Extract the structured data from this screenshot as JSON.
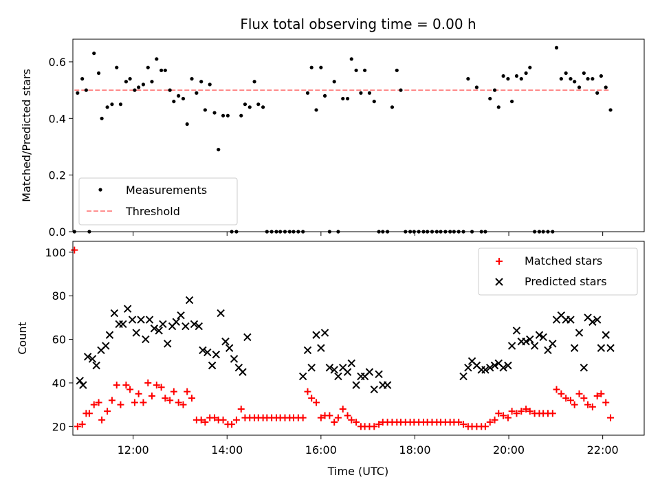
{
  "chart_data": [
    {
      "type": "scatter",
      "title": "Flux total observing time = 0.00 h",
      "xlabel": "",
      "ylabel": "Matched/Predicted stars",
      "ylim": [
        0,
        0.68
      ],
      "yticks": [
        0.0,
        0.2,
        0.4,
        0.6
      ],
      "ytick_labels": [
        "0.0",
        "0.2",
        "0.4",
        "0.6"
      ],
      "xlim": [
        "10:43",
        "22:53"
      ],
      "xticks": [
        "12:00",
        "14:00",
        "16:00",
        "18:00",
        "20:00",
        "22:00"
      ],
      "legend": {
        "position": "lower-left",
        "entries": [
          "Measurements",
          "Threshold"
        ]
      },
      "threshold": {
        "name": "Threshold",
        "value": 0.5,
        "color": "#ff8080",
        "style": "dashed"
      },
      "series": [
        {
          "name": "Measurements",
          "color": "#000000",
          "marker": "dot",
          "x": [
            "10:45",
            "10:49",
            "10:55",
            "11:00",
            "11:04",
            "11:10",
            "11:16",
            "11:20",
            "11:27",
            "11:33",
            "11:39",
            "11:44",
            "11:51",
            "11:56",
            "12:02",
            "12:07",
            "12:13",
            "12:19",
            "12:24",
            "12:30",
            "12:36",
            "12:41",
            "12:47",
            "12:52",
            "12:58",
            "13:04",
            "13:09",
            "13:15",
            "13:21",
            "13:27",
            "13:32",
            "13:38",
            "13:44",
            "13:49",
            "13:55",
            "14:01",
            "14:06",
            "14:12",
            "14:18",
            "14:23",
            "14:29",
            "14:35",
            "14:40",
            "14:46",
            "14:51",
            "14:57",
            "15:03",
            "15:08",
            "15:14",
            "15:20",
            "15:25",
            "15:31",
            "15:37",
            "15:43",
            "15:48",
            "15:54",
            "16:00",
            "16:05",
            "16:11",
            "16:17",
            "16:22",
            "16:28",
            "16:34",
            "16:39",
            "16:45",
            "16:51",
            "16:56",
            "17:02",
            "17:08",
            "17:14",
            "17:19",
            "17:25",
            "17:31",
            "17:37",
            "17:42",
            "17:48",
            "17:54",
            "17:59",
            "18:05",
            "18:11",
            "18:16",
            "18:22",
            "18:28",
            "18:33",
            "18:39",
            "18:45",
            "18:50",
            "18:56",
            "19:02",
            "19:08",
            "19:13",
            "19:19",
            "19:25",
            "19:30",
            "19:36",
            "19:42",
            "19:47",
            "19:53",
            "19:59",
            "20:04",
            "20:10",
            "20:16",
            "20:22",
            "20:27",
            "20:33",
            "20:39",
            "20:44",
            "20:50",
            "20:56",
            "21:01",
            "21:07",
            "21:13",
            "21:19",
            "21:24",
            "21:30",
            "21:36",
            "21:41",
            "21:47",
            "21:53",
            "21:58",
            "22:04",
            "22:10"
          ],
          "y": [
            0.0,
            0.49,
            0.54,
            0.5,
            0.0,
            0.63,
            0.56,
            0.4,
            0.44,
            0.45,
            0.58,
            0.45,
            0.53,
            0.54,
            0.5,
            0.51,
            0.52,
            0.58,
            0.53,
            0.61,
            0.57,
            0.57,
            0.5,
            0.46,
            0.48,
            0.47,
            0.38,
            0.54,
            0.49,
            0.53,
            0.43,
            0.52,
            0.42,
            0.29,
            0.41,
            0.41,
            0.0,
            0.0,
            0.41,
            0.45,
            0.44,
            0.53,
            0.45,
            0.44,
            0.0,
            0.0,
            0.0,
            0.0,
            0.0,
            0.0,
            0.0,
            0.0,
            0.0,
            0.49,
            0.58,
            0.43,
            0.58,
            0.48,
            0.0,
            0.53,
            0.0,
            0.47,
            0.47,
            0.61,
            0.57,
            0.49,
            0.57,
            0.49,
            0.46,
            0.0,
            0.0,
            0.0,
            0.44,
            0.57,
            0.5,
            0.0,
            0.0,
            0.0,
            0.0,
            0.0,
            0.0,
            0.0,
            0.0,
            0.0,
            0.0,
            0.0,
            0.0,
            0.0,
            0.0,
            0.54,
            0.0,
            0.51,
            0.0,
            0.0,
            0.47,
            0.5,
            0.44,
            0.55,
            0.54,
            0.46,
            0.55,
            0.54,
            0.56,
            0.58,
            0.0,
            0.0,
            0.0,
            0.0,
            0.0,
            0.65,
            0.54,
            0.56,
            0.54,
            0.53,
            0.51,
            0.56,
            0.54,
            0.54,
            0.49,
            0.55,
            0.51,
            0.43
          ]
        }
      ]
    },
    {
      "type": "scatter",
      "title": "",
      "xlabel": "Time (UTC)",
      "ylabel": "Count",
      "ylim": [
        16,
        105
      ],
      "yticks": [
        20,
        40,
        60,
        80,
        100
      ],
      "ytick_labels": [
        "20",
        "40",
        "60",
        "80",
        "100"
      ],
      "xlim": [
        "10:43",
        "22:53"
      ],
      "xticks": [
        "12:00",
        "14:00",
        "16:00",
        "18:00",
        "20:00",
        "22:00"
      ],
      "xtick_labels": [
        "12:00",
        "14:00",
        "16:00",
        "18:00",
        "20:00",
        "22:00"
      ],
      "legend": {
        "position": "upper-right",
        "entries": [
          "Matched stars",
          "Predicted stars"
        ]
      },
      "series": [
        {
          "name": "Matched stars",
          "color": "#ff0000",
          "marker": "plus",
          "x": [
            "10:45",
            "10:49",
            "10:55",
            "11:00",
            "11:04",
            "11:10",
            "11:16",
            "11:20",
            "11:27",
            "11:33",
            "11:39",
            "11:44",
            "11:51",
            "11:56",
            "12:02",
            "12:07",
            "12:13",
            "12:19",
            "12:24",
            "12:30",
            "12:36",
            "12:41",
            "12:47",
            "12:52",
            "12:58",
            "13:04",
            "13:09",
            "13:15",
            "13:21",
            "13:27",
            "13:32",
            "13:38",
            "13:44",
            "13:49",
            "13:55",
            "14:01",
            "14:06",
            "14:12",
            "14:18",
            "14:23",
            "14:29",
            "14:35",
            "14:40",
            "14:46",
            "14:51",
            "14:57",
            "15:03",
            "15:08",
            "15:14",
            "15:20",
            "15:25",
            "15:31",
            "15:37",
            "15:43",
            "15:48",
            "15:54",
            "16:00",
            "16:05",
            "16:11",
            "16:17",
            "16:22",
            "16:28",
            "16:34",
            "16:39",
            "16:45",
            "16:51",
            "16:56",
            "17:02",
            "17:08",
            "17:14",
            "17:19",
            "17:25",
            "17:31",
            "17:37",
            "17:42",
            "17:48",
            "17:54",
            "17:59",
            "18:05",
            "18:11",
            "18:16",
            "18:22",
            "18:28",
            "18:33",
            "18:39",
            "18:45",
            "18:50",
            "18:56",
            "19:02",
            "19:08",
            "19:13",
            "19:19",
            "19:25",
            "19:30",
            "19:36",
            "19:42",
            "19:47",
            "19:53",
            "19:59",
            "20:04",
            "20:10",
            "20:16",
            "20:22",
            "20:27",
            "20:33",
            "20:39",
            "20:44",
            "20:50",
            "20:56",
            "21:01",
            "21:07",
            "21:13",
            "21:19",
            "21:24",
            "21:30",
            "21:36",
            "21:41",
            "21:47",
            "21:53",
            "21:58",
            "22:04",
            "22:10"
          ],
          "y": [
            101,
            20,
            21,
            26,
            26,
            30,
            31,
            23,
            27,
            32,
            39,
            30,
            39,
            37,
            31,
            35,
            31,
            40,
            34,
            39,
            38,
            33,
            32,
            36,
            31,
            30,
            36,
            33,
            23,
            23,
            22,
            24,
            24,
            23,
            23,
            21,
            21,
            23,
            28,
            24,
            24,
            24,
            24,
            24,
            24,
            24,
            24,
            24,
            24,
            24,
            24,
            24,
            24,
            36,
            33,
            31,
            24,
            25,
            25,
            22,
            24,
            28,
            25,
            23,
            22,
            20,
            20,
            20,
            20,
            21,
            22,
            22,
            22,
            22,
            22,
            22,
            22,
            22,
            22,
            22,
            22,
            22,
            22,
            22,
            22,
            22,
            22,
            22,
            21,
            20,
            20,
            20,
            20,
            20,
            22,
            23,
            26,
            25,
            24,
            27,
            26,
            27,
            28,
            27,
            26,
            26,
            26,
            26,
            26,
            37,
            35,
            33,
            32,
            30,
            35,
            33,
            30,
            29,
            34,
            35,
            31,
            24
          ]
        },
        {
          "name": "Predicted stars",
          "color": "#000000",
          "marker": "cross",
          "x": [
            "10:52",
            "10:56",
            "11:02",
            "11:08",
            "11:13",
            "11:19",
            "11:25",
            "11:30",
            "11:36",
            "11:42",
            "11:47",
            "11:53",
            "11:59",
            "12:04",
            "12:10",
            "12:16",
            "12:21",
            "12:27",
            "12:33",
            "12:38",
            "12:44",
            "12:50",
            "12:55",
            "13:01",
            "13:07",
            "13:12",
            "13:18",
            "13:24",
            "13:29",
            "13:35",
            "13:41",
            "13:46",
            "13:52",
            "13:58",
            "14:03",
            "14:09",
            "14:15",
            "14:20",
            "14:26",
            "15:37",
            "15:43",
            "15:48",
            "15:54",
            "16:00",
            "16:05",
            "16:11",
            "16:17",
            "16:22",
            "16:28",
            "16:34",
            "16:39",
            "16:45",
            "16:51",
            "16:56",
            "17:02",
            "17:08",
            "17:14",
            "17:19",
            "17:25",
            "19:02",
            "19:08",
            "19:13",
            "19:19",
            "19:25",
            "19:30",
            "19:36",
            "19:42",
            "19:47",
            "19:53",
            "19:59",
            "20:04",
            "20:10",
            "20:16",
            "20:22",
            "20:27",
            "20:33",
            "20:39",
            "20:44",
            "20:50",
            "20:56",
            "21:01",
            "21:07",
            "21:13",
            "21:19",
            "21:24",
            "21:30",
            "21:36",
            "21:41",
            "21:47",
            "21:53",
            "21:58",
            "22:04",
            "22:10"
          ],
          "y": [
            41,
            39,
            52,
            51,
            48,
            55,
            57,
            62,
            72,
            67,
            67,
            74,
            69,
            63,
            69,
            60,
            69,
            65,
            64,
            67,
            58,
            66,
            68,
            71,
            66,
            78,
            67,
            66,
            55,
            54,
            48,
            53,
            72,
            59,
            56,
            51,
            47,
            45,
            61,
            43,
            55,
            47,
            62,
            56,
            63,
            47,
            46,
            43,
            47,
            45,
            49,
            39,
            43,
            43,
            45,
            37,
            44,
            39,
            39,
            43,
            47,
            50,
            48,
            46,
            46,
            47,
            48,
            49,
            47,
            48,
            57,
            64,
            59,
            59,
            60,
            57,
            62,
            61,
            55,
            58,
            69,
            71,
            69,
            69,
            56,
            63,
            47,
            70,
            68,
            69,
            56,
            62,
            56
          ]
        }
      ]
    }
  ]
}
